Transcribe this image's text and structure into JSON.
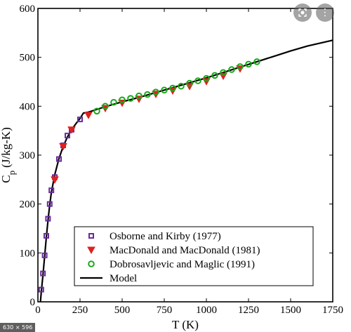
{
  "chart_data": {
    "type": "scatter",
    "title": "",
    "xlabel": "T (K)",
    "ylabel_main": "C",
    "ylabel_sub": "p",
    "ylabel_unit": "(J/kg-K)",
    "xlim": [
      0,
      1750
    ],
    "ylim": [
      0,
      600
    ],
    "x_ticks": [
      0,
      250,
      500,
      750,
      1000,
      1250,
      1500,
      1750
    ],
    "y_ticks": [
      0,
      100,
      200,
      300,
      400,
      500,
      600
    ],
    "legend_position": "bottom-right",
    "series": [
      {
        "name": "Osborne and Kirby (1977)",
        "marker": "square",
        "color": "#6a2a9c",
        "points": [
          [
            20,
            25
          ],
          [
            30,
            58
          ],
          [
            40,
            95
          ],
          [
            50,
            135
          ],
          [
            60,
            170
          ],
          [
            70,
            200
          ],
          [
            80,
            228
          ],
          [
            100,
            255
          ],
          [
            125,
            292
          ],
          [
            150,
            320
          ],
          [
            175,
            340
          ],
          [
            200,
            352
          ],
          [
            250,
            373
          ]
        ]
      },
      {
        "name": "MacDonald and MacDonald (1981)",
        "marker": "triangle-down",
        "color": "#e02020",
        "points": [
          [
            100,
            250
          ],
          [
            150,
            318
          ],
          [
            200,
            352
          ],
          [
            300,
            382
          ],
          [
            400,
            396
          ],
          [
            500,
            407
          ],
          [
            600,
            415
          ],
          [
            700,
            425
          ],
          [
            800,
            432
          ],
          [
            900,
            441
          ],
          [
            1000,
            451
          ],
          [
            1100,
            462
          ],
          [
            1200,
            477
          ]
        ]
      },
      {
        "name": "Dobrosavljevic and Maglic (1991)",
        "marker": "circle",
        "color": "#1aa81a",
        "points": [
          [
            350,
            390
          ],
          [
            400,
            400
          ],
          [
            450,
            408
          ],
          [
            500,
            413
          ],
          [
            550,
            416
          ],
          [
            600,
            421
          ],
          [
            650,
            424
          ],
          [
            700,
            429
          ],
          [
            750,
            433
          ],
          [
            800,
            437
          ],
          [
            850,
            441
          ],
          [
            900,
            447
          ],
          [
            950,
            452
          ],
          [
            1000,
            457
          ],
          [
            1050,
            463
          ],
          [
            1100,
            469
          ],
          [
            1150,
            475
          ],
          [
            1200,
            481
          ],
          [
            1250,
            486
          ],
          [
            1300,
            491
          ]
        ]
      },
      {
        "name": "Model",
        "marker": "line",
        "color": "#000000",
        "points": [
          [
            15,
            0
          ],
          [
            20,
            20
          ],
          [
            30,
            55
          ],
          [
            40,
            93
          ],
          [
            50,
            132
          ],
          [
            60,
            167
          ],
          [
            70,
            198
          ],
          [
            80,
            224
          ],
          [
            100,
            260
          ],
          [
            125,
            293
          ],
          [
            150,
            318
          ],
          [
            175,
            337
          ],
          [
            200,
            352
          ],
          [
            225,
            364
          ],
          [
            250,
            375
          ],
          [
            270,
            386
          ],
          [
            300,
            388
          ],
          [
            400,
            399
          ],
          [
            500,
            409
          ],
          [
            600,
            418
          ],
          [
            700,
            428
          ],
          [
            800,
            438
          ],
          [
            900,
            448
          ],
          [
            1000,
            458
          ],
          [
            1100,
            469
          ],
          [
            1200,
            480
          ],
          [
            1300,
            491
          ],
          [
            1400,
            502
          ],
          [
            1500,
            513
          ],
          [
            1600,
            523
          ],
          [
            1750,
            535
          ]
        ]
      }
    ]
  },
  "overlay": {
    "lens_icon": "lens-icon",
    "more_icon": "more-vertical-icon",
    "more_glyph": "⋮",
    "size_badge": "630 × 596"
  }
}
